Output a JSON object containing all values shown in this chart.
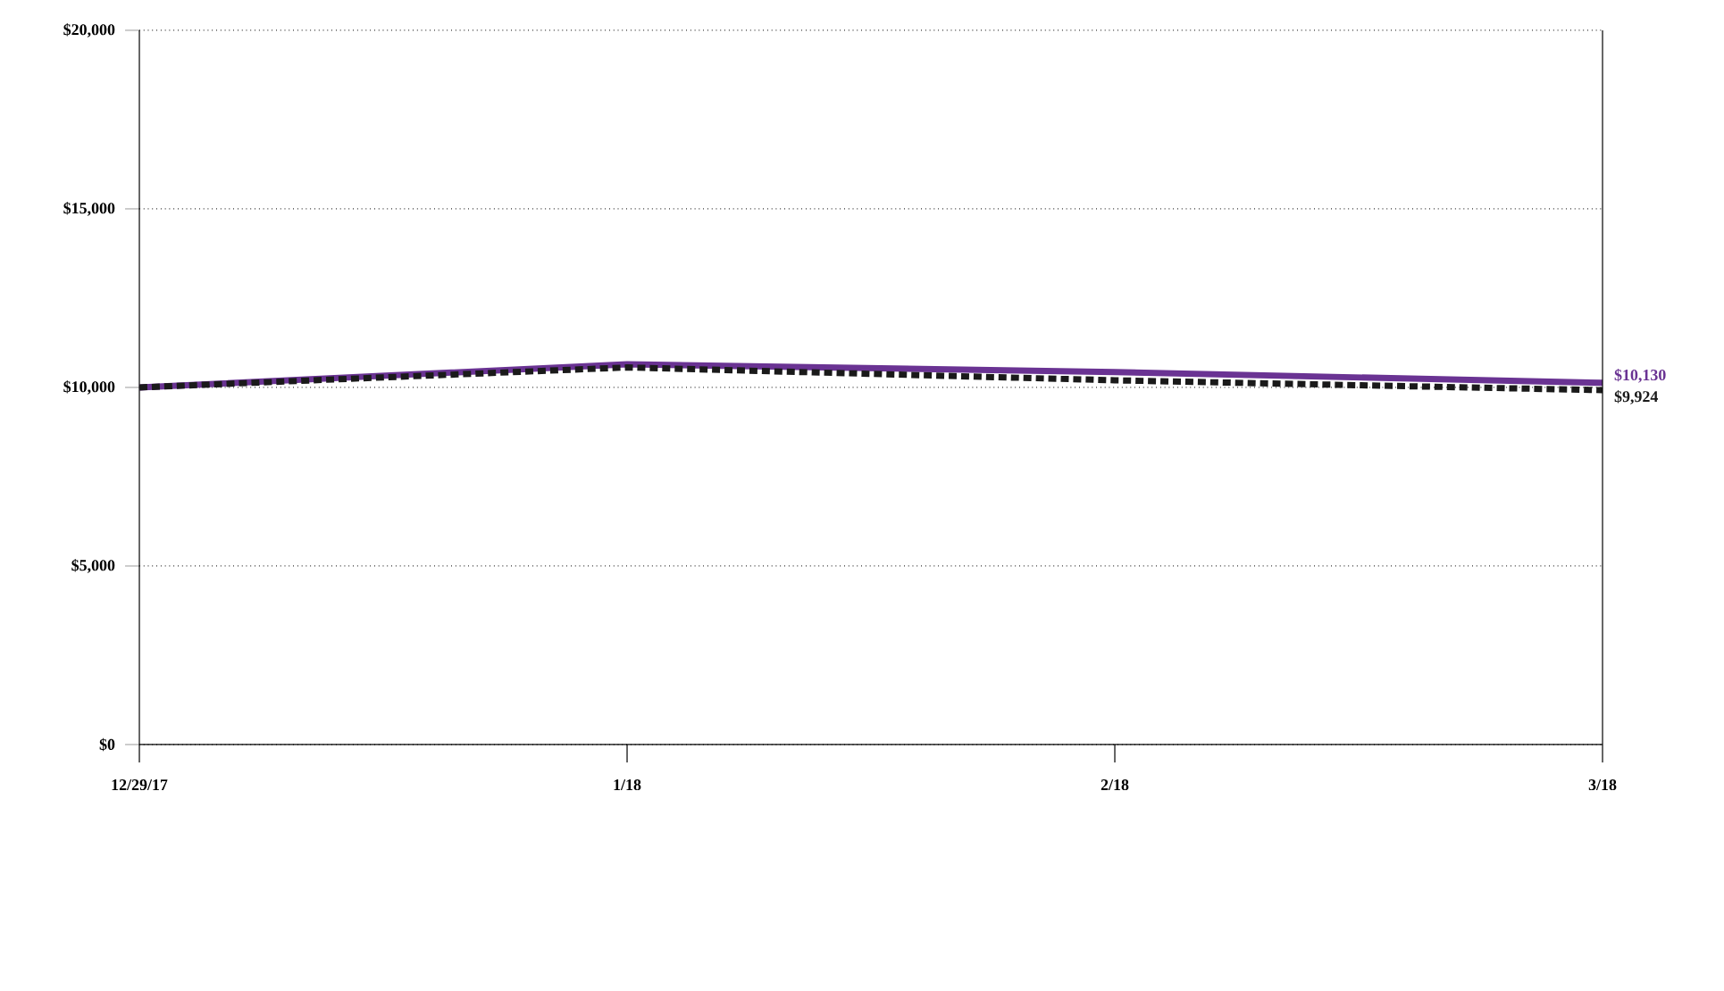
{
  "chart_data": {
    "type": "line",
    "categories": [
      "12/29/17",
      "1/18",
      "2/18",
      "3/18"
    ],
    "series": [
      {
        "color": "#6a3393",
        "values": [
          10000,
          10650,
          10430,
          10130
        ],
        "value_labels": [
          null,
          null,
          null,
          "$10,130"
        ],
        "line_style": "solid"
      },
      {
        "color": "#1a1a1a",
        "values": [
          10000,
          10560,
          10200,
          9924
        ],
        "value_labels": [
          null,
          null,
          null,
          "$9,924"
        ],
        "line_style": "dotted"
      }
    ],
    "ylim": [
      0,
      20000
    ],
    "yticks": [
      {
        "value": 0,
        "label": "$0"
      },
      {
        "value": 5000,
        "label": "$5,000"
      },
      {
        "value": 10000,
        "label": "$10,000"
      },
      {
        "value": 15000,
        "label": "$15,000"
      },
      {
        "value": 20000,
        "label": "$20,000"
      }
    ],
    "grid": "y",
    "marker": "none"
  }
}
